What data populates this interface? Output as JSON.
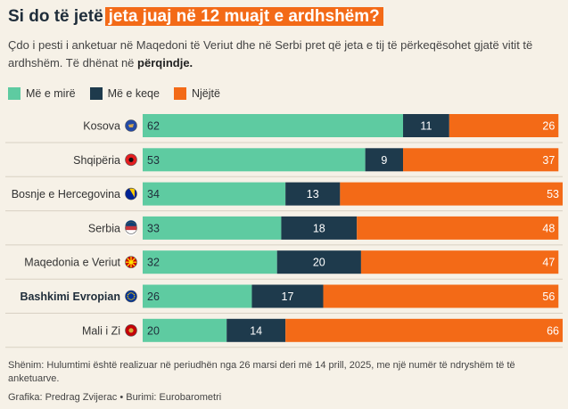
{
  "header": {
    "title_plain": "Si do të jetë",
    "title_highlight": "jeta juaj në 12 muajt e ardhshëm?",
    "subtitle_main": "Çdo i pesti i anketuar në Maqedoni të Veriut dhe në Serbi pret që jeta e tij të përkeqësohet gjatë vitit të ardhshëm. Të dhënat në",
    "subtitle_bold": "përqindje."
  },
  "legend": [
    {
      "label": "Më e mirë",
      "color": "#5ecba1"
    },
    {
      "label": "Më e keqe",
      "color": "#1e3a4c"
    },
    {
      "label": "Njëjtë",
      "color": "#f36a17"
    }
  ],
  "chart_data": {
    "type": "bar",
    "orientation": "horizontal",
    "stacked": true,
    "unit": "percent",
    "categories": [
      "Kosova",
      "Shqipëria",
      "Bosnje e Hercegovina",
      "Serbia",
      "Maqedonia e Veriut",
      "Bashkimi Evropian",
      "Mali i Zi"
    ],
    "flag_icons": [
      "kosovo-flag-icon",
      "albania-flag-icon",
      "bosnia-flag-icon",
      "serbia-flag-icon",
      "north-macedonia-flag-icon",
      "eu-flag-icon",
      "montenegro-flag-icon"
    ],
    "bold_categories": [
      "Bashkimi Evropian"
    ],
    "series": [
      {
        "name": "Më e mirë",
        "color": "#5ecba1",
        "values": [
          62,
          53,
          34,
          33,
          32,
          26,
          20
        ]
      },
      {
        "name": "Më e keqe",
        "color": "#1e3a4c",
        "values": [
          11,
          9,
          13,
          18,
          20,
          17,
          14
        ]
      },
      {
        "name": "Njëjtë",
        "color": "#f36a17",
        "values": [
          26,
          37,
          53,
          48,
          47,
          56,
          66
        ]
      }
    ],
    "xlim": [
      0,
      100
    ],
    "grid": false,
    "legend_position": "top-left"
  },
  "footer": {
    "note": "Shënim: Hulumtimi është realizuar në periudhën nga 26 marsi deri më 14 prill, 2025, me një numër të ndryshëm të të anketuarve.",
    "credit": "Grafika: Predrag Zvijerac • Burimi: Eurobarometri"
  }
}
